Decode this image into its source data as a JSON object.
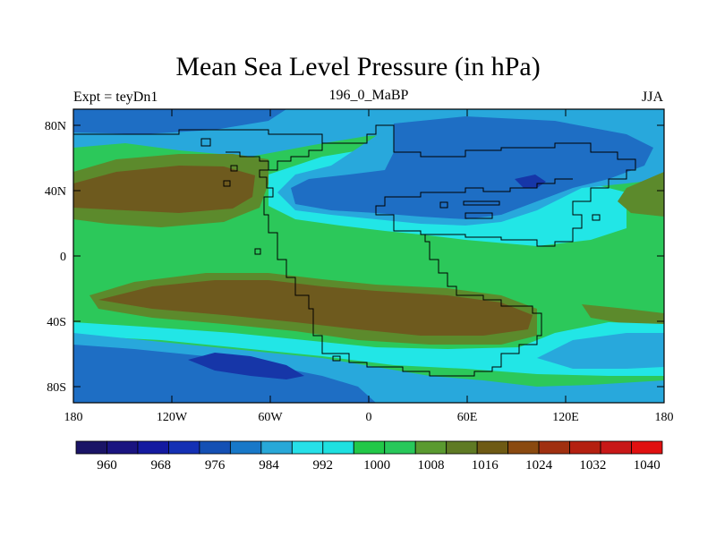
{
  "chart_data": {
    "type": "heatmap",
    "title": "Mean Sea Level Pressure (in hPa)",
    "left_label": "Expt = teyDn1",
    "center_label": "196_0_MaBP",
    "right_label": "JJA",
    "x_ticks": [
      "180",
      "120W",
      "60W",
      "0",
      "60E",
      "120E",
      "180"
    ],
    "y_ticks": [
      "80N",
      "40N",
      "0",
      "40S",
      "80S"
    ],
    "colorbar": {
      "labels": [
        "960",
        "968",
        "976",
        "984",
        "992",
        "1000",
        "1008",
        "1016",
        "1024",
        "1032",
        "1040"
      ],
      "colors": [
        "#1a1466",
        "#1a1480",
        "#141aa0",
        "#1430b4",
        "#1450b4",
        "#1878c8",
        "#28a8d8",
        "#26e0e8",
        "#1ee0e0",
        "#22c848",
        "#28c85a",
        "#5a9a30",
        "#5f7a24",
        "#6e5a14",
        "#8a4a10",
        "#a03010",
        "#b42010",
        "#c81818",
        "#e01010"
      ]
    },
    "levels": {
      "dark_blue": "#1636a8",
      "mid_blue": "#1e6ec4",
      "light_blue": "#28a8dc",
      "cyan": "#22e6e6",
      "green": "#2cc85a",
      "olive": "#5c8a2c",
      "brown": "#6e5a1e"
    }
  }
}
